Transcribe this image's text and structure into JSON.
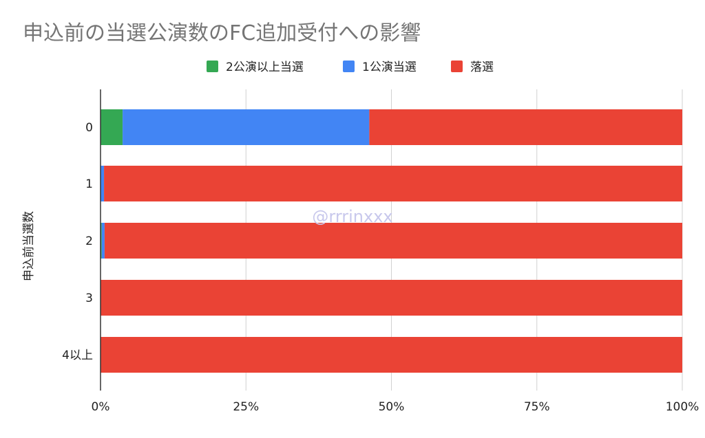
{
  "chart_data": {
    "type": "bar",
    "orientation": "horizontal",
    "stacked": "percent",
    "title": "申込前の当選公演数のFC追加受付への影響",
    "xlabel": "",
    "ylabel": "申込前当選数",
    "categories": [
      "0",
      "1",
      "2",
      "3",
      "4以上"
    ],
    "series": [
      {
        "name": "2公演以上当選",
        "color": "#34a853",
        "values": [
          3.8,
          0.0,
          0.2,
          0.0,
          0.0
        ]
      },
      {
        "name": "1公演当選",
        "color": "#4285f4",
        "values": [
          42.4,
          0.6,
          0.5,
          0.0,
          0.0
        ]
      },
      {
        "name": "落選",
        "color": "#ea4335",
        "values": [
          53.8,
          99.4,
          99.3,
          100.0,
          100.0
        ]
      }
    ],
    "xlim": [
      0,
      100
    ],
    "xticks": [
      "0%",
      "25%",
      "50%",
      "75%",
      "100%"
    ],
    "grid": "vertical",
    "legend_position": "top"
  },
  "watermark": "@rrrinxxx"
}
